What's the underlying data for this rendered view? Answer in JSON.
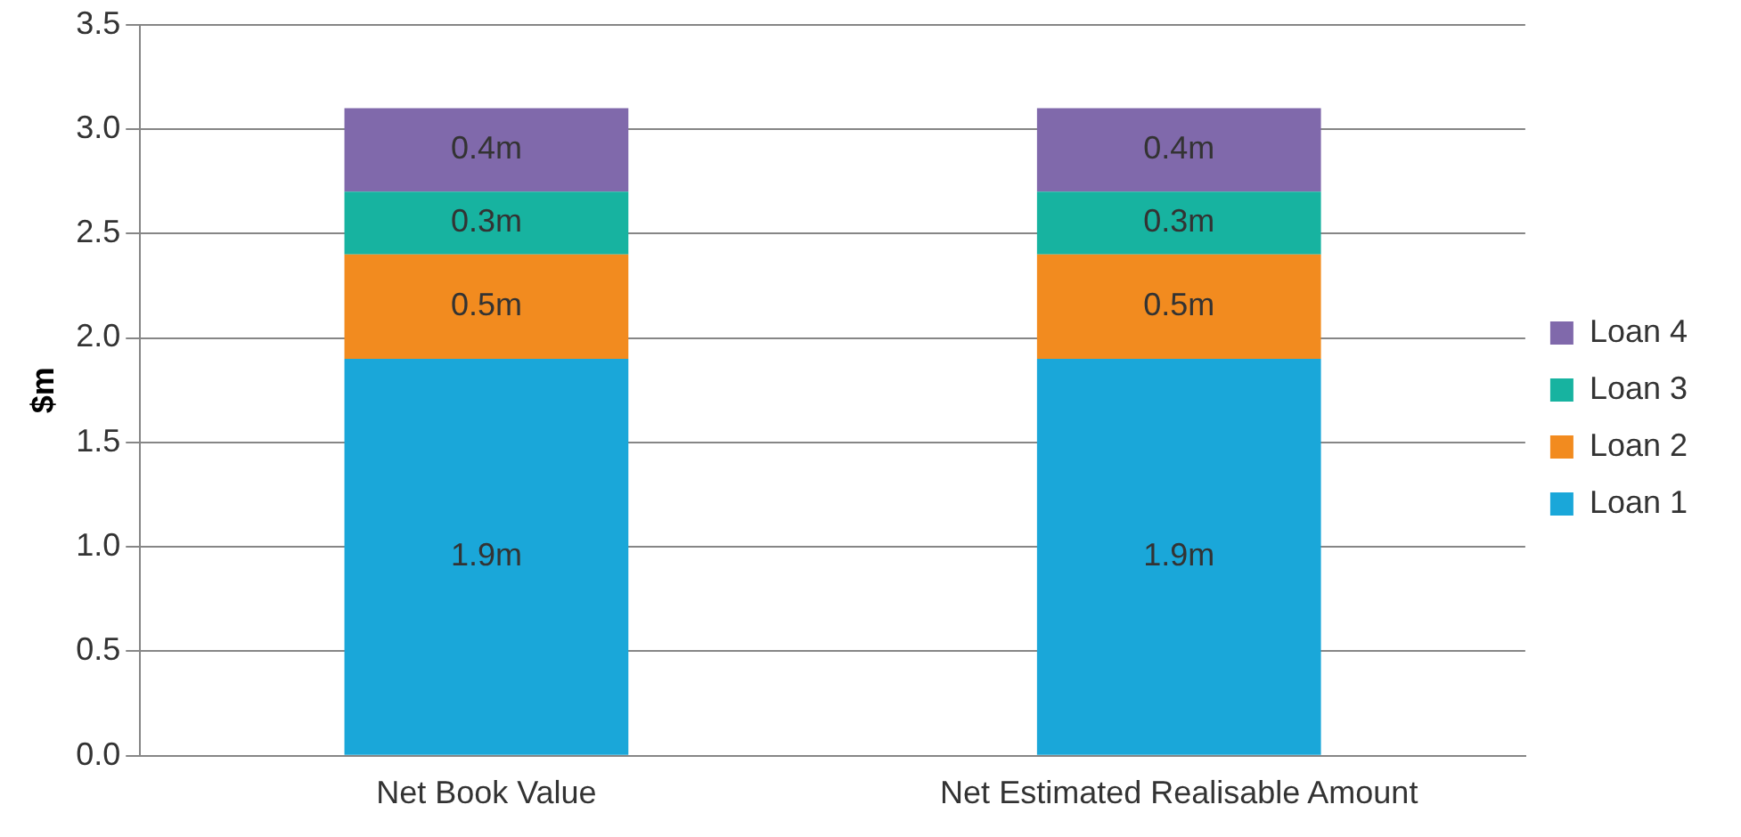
{
  "chart_data": {
    "type": "bar",
    "stacked": true,
    "ylabel": "$m",
    "categories": [
      "Net Book Value",
      "Net Estimated Realisable Amount"
    ],
    "series": [
      {
        "name": "Loan 1",
        "color": "#1aa7d9",
        "values": [
          1.9,
          1.9
        ],
        "value_labels": [
          "1.9m",
          "1.9m"
        ]
      },
      {
        "name": "Loan 2",
        "color": "#f28b1f",
        "values": [
          0.5,
          0.5
        ],
        "value_labels": [
          "0.5m",
          "0.5m"
        ]
      },
      {
        "name": "Loan 3",
        "color": "#17b3a0",
        "values": [
          0.3,
          0.3
        ],
        "value_labels": [
          "0.3m",
          "0.3m"
        ]
      },
      {
        "name": "Loan 4",
        "color": "#8069ab",
        "values": [
          0.4,
          0.4
        ],
        "value_labels": [
          "0.4m",
          "0.4m"
        ]
      }
    ],
    "ylim": [
      0,
      3.5
    ],
    "yticks": [
      {
        "value": 0,
        "label": "0.0"
      },
      {
        "value": 0.5,
        "label": "0.5"
      },
      {
        "value": 1,
        "label": "1.0"
      },
      {
        "value": 1.5,
        "label": "1.5"
      },
      {
        "value": 2,
        "label": "2.0"
      },
      {
        "value": 2.5,
        "label": "2.5"
      },
      {
        "value": 3,
        "label": "3.0"
      },
      {
        "value": 3.5,
        "label": "3.5"
      }
    ],
    "grid": "y",
    "legend": "right"
  }
}
